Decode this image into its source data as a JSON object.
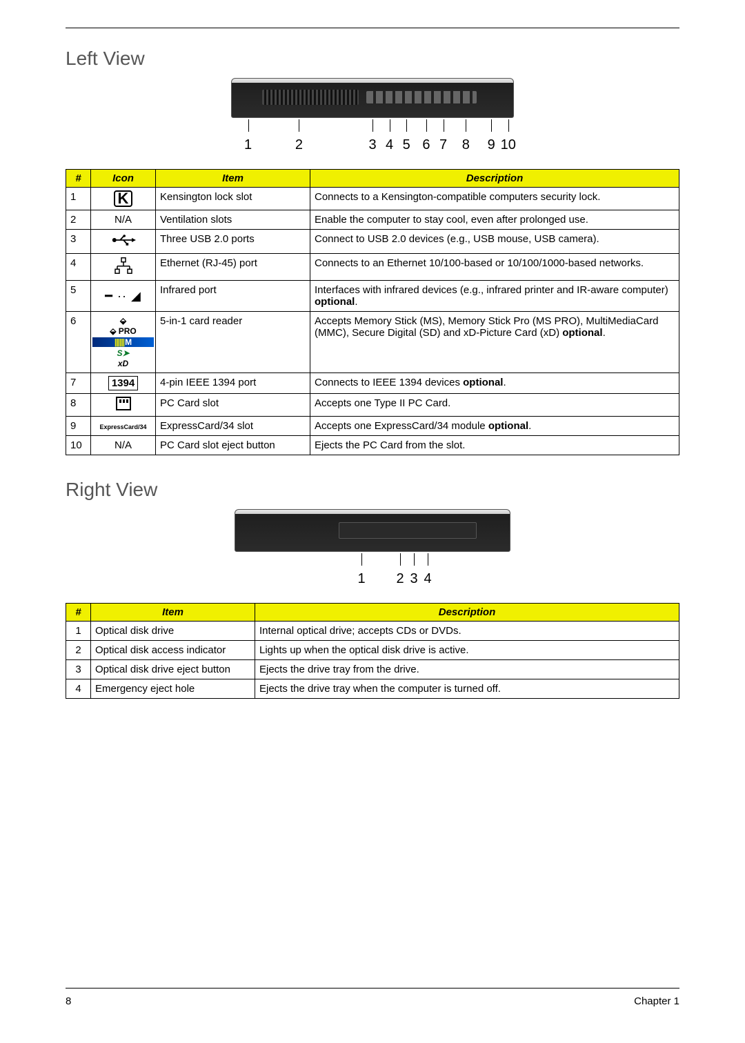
{
  "page": {
    "number": "8",
    "chapter": "Chapter 1"
  },
  "leftView": {
    "heading": "Left View",
    "labels": [
      "1",
      "2",
      "3",
      "4",
      "5",
      "6",
      "7",
      "8",
      "9",
      "10"
    ],
    "tickPositions": [
      6,
      24,
      50,
      56,
      62,
      69,
      75,
      83,
      92,
      98
    ],
    "headers": {
      "num": "#",
      "icon": "Icon",
      "item": "Item",
      "desc": "Description"
    },
    "rows": [
      {
        "n": "1",
        "icon": "lock",
        "iconAlt": "K",
        "item": "Kensington lock slot",
        "desc": "Connects to a Kensington-compatible computers security lock."
      },
      {
        "n": "2",
        "icon": "text",
        "iconAlt": "N/A",
        "item": "Ventilation slots",
        "desc": "Enable the computer to stay cool, even after prolonged use."
      },
      {
        "n": "3",
        "icon": "usb",
        "iconAlt": "USB",
        "item": "Three USB 2.0 ports",
        "desc": "Connect to USB 2.0 devices (e.g., USB mouse, USB camera)."
      },
      {
        "n": "4",
        "icon": "eth",
        "iconAlt": "Ethernet",
        "item": "Ethernet (RJ-45) port",
        "desc": "Connects to an Ethernet 10/100-based or 10/100/1000-based networks."
      },
      {
        "n": "5",
        "icon": "ir",
        "iconAlt": "IR",
        "item": "Infrared port",
        "desc": "Interfaces with infrared devices (e.g., infrared printer and IR-aware computer) ",
        "bold": "optional",
        "tail": "."
      },
      {
        "n": "6",
        "icon": "cards",
        "iconAlt": "cards",
        "item": "5-in-1 card reader",
        "desc": "Accepts Memory Stick (MS), Memory Stick Pro (MS PRO), MultiMediaCard (MMC), Secure Digital (SD) and xD-Picture Card (xD) ",
        "bold": "optional",
        "tail": "."
      },
      {
        "n": "7",
        "icon": "1394",
        "iconAlt": "1394",
        "item": "4-pin IEEE 1394 port",
        "desc": "Connects to IEEE 1394 devices ",
        "bold": "optional",
        "tail": "."
      },
      {
        "n": "8",
        "icon": "pccard",
        "iconAlt": "PC Card",
        "item": "PC Card slot",
        "desc": "Accepts one Type II PC Card."
      },
      {
        "n": "9",
        "icon": "express",
        "iconAlt": "ExpressCard/34",
        "item": "ExpressCard/34 slot",
        "desc": "Accepts one ExpressCard/34 module ",
        "bold": "optional",
        "tail": "."
      },
      {
        "n": "10",
        "icon": "text",
        "iconAlt": "N/A",
        "item": "PC Card slot eject button",
        "desc": "Ejects the PC Card from the slot."
      }
    ]
  },
  "rightView": {
    "heading": "Right View",
    "labels": [
      "1",
      "2",
      "3",
      "4"
    ],
    "tickPositions": [
      46,
      60,
      65,
      70
    ],
    "headers": {
      "num": "#",
      "item": "Item",
      "desc": "Description"
    },
    "rows": [
      {
        "n": "1",
        "item": "Optical disk drive",
        "desc": "Internal optical drive; accepts CDs or DVDs."
      },
      {
        "n": "2",
        "item": "Optical disk access indicator",
        "desc": "Lights up when the optical disk drive is active."
      },
      {
        "n": "3",
        "item": "Optical disk drive eject button",
        "desc": "Ejects the drive tray from the drive."
      },
      {
        "n": "4",
        "item": "Emergency eject hole",
        "desc": "Ejects the drive tray when the computer is turned off."
      }
    ]
  },
  "style": {
    "headerBg": "#f0f000",
    "border": "#000000",
    "textColor": "#000000",
    "headingColor": "#565656",
    "fontSizeBody": 15,
    "fontSizeHeading": 28
  }
}
